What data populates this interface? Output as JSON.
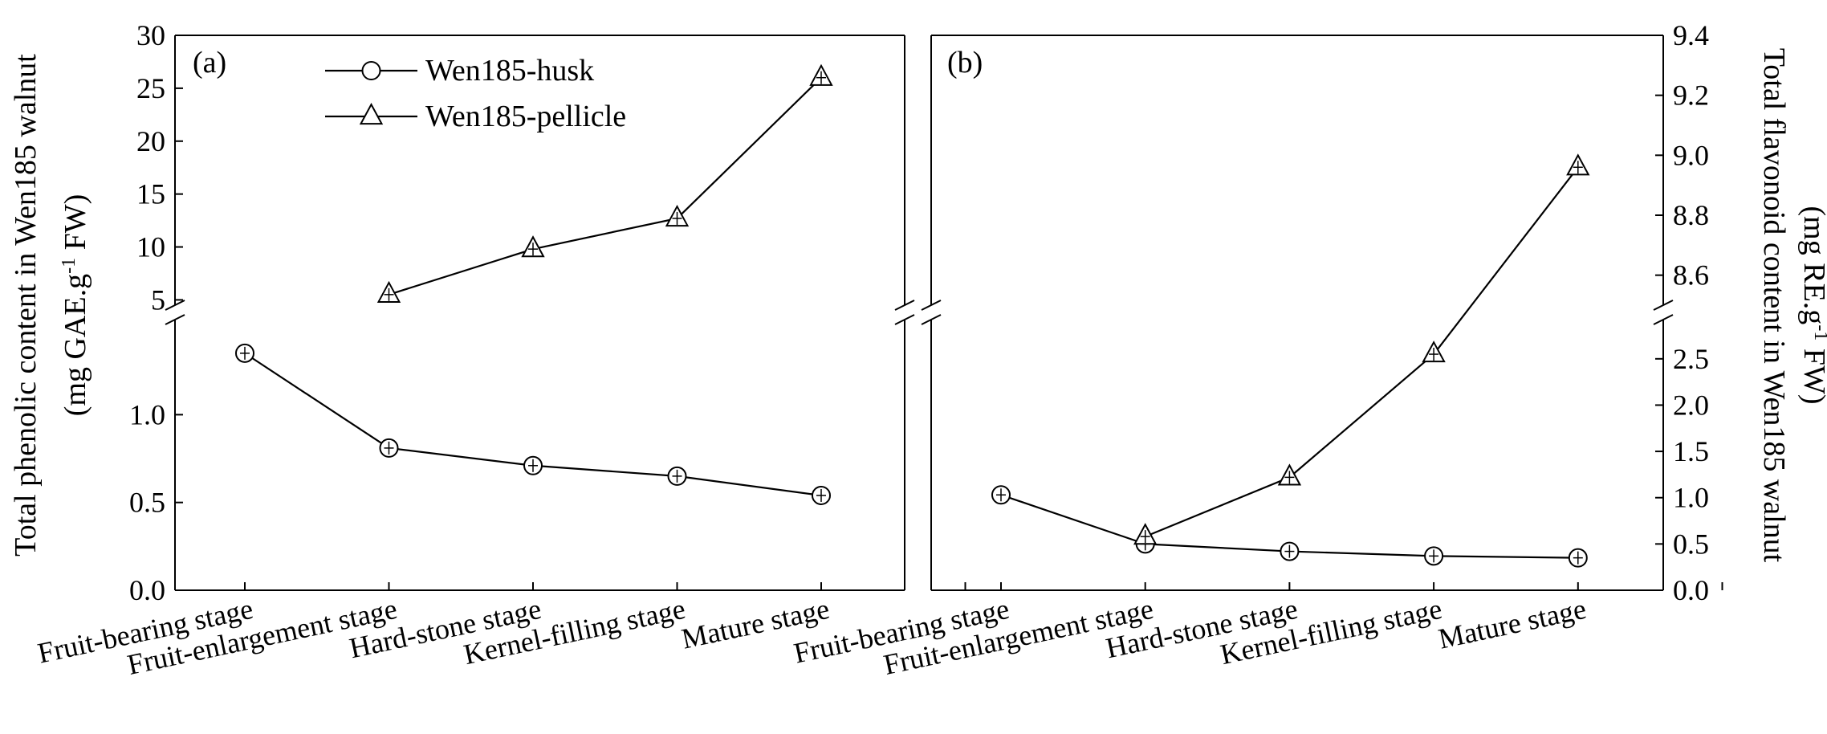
{
  "chart_data": [
    {
      "type": "line",
      "panel_label": "(a)",
      "ylabel": "Total phenolic content in Wen185 walnut",
      "ylabel_unit_pre": "(mg GAE.g",
      "ylabel_unit_sup": "-1",
      "ylabel_unit_post": " FW)",
      "categories": [
        "Fruit-bearing stage",
        "Fruit-enlargement stage",
        "Hard-stone stage",
        "Kernel-filling stage",
        "Mature stage"
      ],
      "axis_break": true,
      "lower_ylim": [
        0,
        1.45
      ],
      "lower_yticks": [
        "0.0",
        "0.5",
        "1.0"
      ],
      "upper_ylim": [
        4.5,
        30
      ],
      "upper_yticks": [
        "5",
        "10",
        "15",
        "20",
        "25",
        "30"
      ],
      "series": [
        {
          "name": "Wen185-husk",
          "marker": "circle",
          "values": [
            1.35,
            0.81,
            0.71,
            0.65,
            0.54
          ]
        },
        {
          "name": "Wen185-pellicle",
          "marker": "triangle",
          "values": [
            null,
            5.5,
            9.8,
            12.7,
            26.0
          ]
        }
      ],
      "legend_position": "top-center",
      "grid": false
    },
    {
      "type": "line",
      "panel_label": "(b)",
      "ylabel": "Total flavonoid content in Wen185 walnut",
      "ylabel_unit_pre": "(mg RE.g",
      "ylabel_unit_sup": "-1",
      "ylabel_unit_post": " FW)",
      "categories": [
        "Fruit-bearing stage",
        "Fruit-enlargement stage",
        "Hard-stone stage",
        "Kernel-filling stage",
        "Mature stage"
      ],
      "axis_break": true,
      "lower_ylim": [
        0,
        2.75
      ],
      "lower_yticks": [
        "0.0",
        "0.5",
        "1.0",
        "1.5",
        "2.0",
        "2.5"
      ],
      "upper_ylim": [
        8.5,
        9.4
      ],
      "upper_yticks": [
        "8.6",
        "8.8",
        "9.0",
        "9.2",
        "9.4"
      ],
      "series": [
        {
          "name": "Wen185-husk",
          "marker": "circle",
          "values": [
            1.03,
            0.5,
            0.42,
            0.37,
            0.35
          ]
        },
        {
          "name": "Wen185-pellicle",
          "marker": "triangle",
          "values": [
            null,
            0.58,
            1.22,
            2.55,
            8.96
          ]
        }
      ],
      "grid": false
    }
  ]
}
